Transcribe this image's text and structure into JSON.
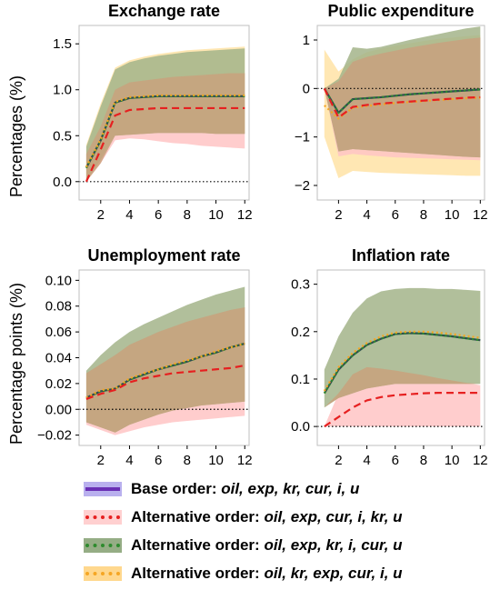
{
  "y_labels": {
    "top": "Percentages (%)",
    "bottom": "Percentage points  (%)"
  },
  "legend": [
    {
      "prefix": "Base order:",
      "vars": "oil, exp, kr, cur, i, u",
      "band": "#b9b0ee",
      "line": "#6a2fb5",
      "dash": "solid"
    },
    {
      "prefix": "Alternative order:",
      "vars": "oil, exp, cur, i, kr, u",
      "band": "#ffd0d0",
      "line": "#e62020",
      "dash": "dotted"
    },
    {
      "prefix": "Alternative order:",
      "vars": "oil, exp, kr, i, cur, u",
      "band": "#95ad85",
      "line": "#2e8b2e",
      "dash": "dotted"
    },
    {
      "prefix": "Alternative order:",
      "vars": "oil, kr, exp, cur, i, u",
      "band": "#ffd88e",
      "line": "#f5a623",
      "dash": "dotted"
    }
  ],
  "chart_data": [
    {
      "type": "line",
      "title": "Exchange rate",
      "x": [
        1,
        2,
        3,
        4,
        5,
        6,
        7,
        8,
        9,
        10,
        11,
        12
      ],
      "xticks": [
        2,
        4,
        6,
        8,
        10,
        12
      ],
      "yticks": [
        0.0,
        0.5,
        1.0,
        1.5
      ],
      "tick_labels": [
        "0.0",
        "0.5",
        "1.0",
        "1.5"
      ],
      "ylim": [
        -0.2,
        1.7
      ],
      "xlim": [
        0.5,
        12.3
      ],
      "zero_line": true,
      "bands": [
        {
          "name": "Alternative order: oil, exp, cur, i, kr, u",
          "color": "#ffc4c4",
          "lower": [
            0,
            0.2,
            0.45,
            0.47,
            0.46,
            0.44,
            0.42,
            0.41,
            0.39,
            0.38,
            0.37,
            0.36
          ],
          "upper": [
            0.3,
            0.6,
            1.0,
            1.08,
            1.1,
            1.12,
            1.14,
            1.15,
            1.16,
            1.17,
            1.18,
            1.18
          ]
        },
        {
          "name": "Alternative order: oil, kr, exp, cur, i, u",
          "color": "#ffe3a6",
          "lower": [
            0,
            0.24,
            0.51,
            0.52,
            0.53,
            0.54,
            0.54,
            0.54,
            0.54,
            0.53,
            0.53,
            0.53
          ],
          "upper": [
            0.4,
            0.85,
            1.24,
            1.32,
            1.36,
            1.39,
            1.41,
            1.43,
            1.44,
            1.45,
            1.46,
            1.47
          ]
        },
        {
          "name": "Alternative order: oil, exp, kr, i, cur, u",
          "color": "#a3b48a",
          "lower": [
            0,
            0.24,
            0.5,
            0.51,
            0.52,
            0.53,
            0.53,
            0.53,
            0.53,
            0.52,
            0.52,
            0.52
          ],
          "upper": [
            0.38,
            0.82,
            1.22,
            1.3,
            1.34,
            1.37,
            1.39,
            1.41,
            1.42,
            1.43,
            1.44,
            1.45
          ]
        },
        {
          "name": "overlap",
          "color": "#c9a27e",
          "lower": [
            0,
            0.2,
            0.5,
            0.51,
            0.52,
            0.53,
            0.53,
            0.53,
            0.53,
            0.52,
            0.52,
            0.52
          ],
          "upper": [
            0.3,
            0.6,
            1.0,
            1.08,
            1.1,
            1.12,
            1.14,
            1.15,
            1.16,
            1.17,
            1.18,
            1.18
          ]
        }
      ],
      "series": [
        {
          "name": "Base order: oil, exp, kr, cur, i, u",
          "color": "#2f4f4f",
          "dash": "solid",
          "values": [
            0.15,
            0.45,
            0.86,
            0.91,
            0.92,
            0.93,
            0.93,
            0.93,
            0.93,
            0.93,
            0.93,
            0.93
          ]
        },
        {
          "name": "Alternative order: oil, exp, kr, i, cur, u",
          "color": "#2e8b2e",
          "dash": "dotted",
          "values": [
            0.15,
            0.45,
            0.86,
            0.91,
            0.92,
            0.93,
            0.93,
            0.93,
            0.93,
            0.93,
            0.93,
            0.93
          ]
        },
        {
          "name": "Alternative order: oil, kr, exp, cur, i, u",
          "color": "#f5a623",
          "dash": "dotted",
          "values": [
            0.16,
            0.46,
            0.87,
            0.92,
            0.93,
            0.94,
            0.94,
            0.94,
            0.94,
            0.94,
            0.94,
            0.94
          ]
        },
        {
          "name": "Alternative order: oil, exp, cur, i, kr, u",
          "color": "#e62020",
          "dash": "dashed",
          "values": [
            0.0,
            0.35,
            0.72,
            0.78,
            0.79,
            0.8,
            0.8,
            0.8,
            0.8,
            0.8,
            0.8,
            0.8
          ]
        }
      ]
    },
    {
      "type": "line",
      "title": "Public expenditure",
      "x": [
        1,
        2,
        3,
        4,
        5,
        6,
        7,
        8,
        9,
        10,
        11,
        12
      ],
      "xticks": [
        2,
        4,
        6,
        8,
        10,
        12
      ],
      "yticks": [
        -2,
        -1,
        0,
        1
      ],
      "tick_labels": [
        "−2",
        "−1",
        "0",
        "1"
      ],
      "ylim": [
        -2.3,
        1.3
      ],
      "xlim": [
        0.5,
        12.3
      ],
      "zero_line": true,
      "bands": [
        {
          "name": "Alternative order: oil, kr, exp, cur, i, u",
          "color": "#ffe3a6",
          "lower": [
            -1.0,
            -1.85,
            -1.7,
            -1.72,
            -1.74,
            -1.75,
            -1.76,
            -1.77,
            -1.78,
            -1.79,
            -1.8,
            -1.8
          ],
          "upper": [
            0.8,
            0.35,
            0.6,
            0.75,
            0.82,
            0.88,
            0.93,
            0.98,
            1.02,
            1.05,
            1.08,
            1.1
          ]
        },
        {
          "name": "Alternative order: oil, exp, cur, i, kr, u",
          "color": "#ffc4c4",
          "lower": [
            0,
            -1.4,
            -1.35,
            -1.38,
            -1.4,
            -1.42,
            -1.43,
            -1.44,
            -1.45,
            -1.46,
            -1.47,
            -1.48
          ],
          "upper": [
            0,
            0.15,
            0.55,
            0.65,
            0.72,
            0.78,
            0.84,
            0.89,
            0.94,
            0.98,
            1.02,
            1.05
          ]
        },
        {
          "name": "Alternative order: oil, exp, kr, i, cur, u",
          "color": "#a3b48a",
          "lower": [
            0,
            -1.3,
            -1.25,
            -1.27,
            -1.29,
            -1.31,
            -1.33,
            -1.35,
            -1.37,
            -1.39,
            -1.41,
            -1.42
          ],
          "upper": [
            0,
            0.2,
            0.85,
            0.82,
            0.86,
            0.93,
            1.0,
            1.06,
            1.12,
            1.18,
            1.24,
            1.28
          ]
        },
        {
          "name": "overlap",
          "color": "#c9a27e",
          "lower": [
            0,
            -1.3,
            -1.25,
            -1.27,
            -1.29,
            -1.31,
            -1.33,
            -1.35,
            -1.37,
            -1.39,
            -1.41,
            -1.42
          ],
          "upper": [
            0,
            0.15,
            0.55,
            0.65,
            0.72,
            0.78,
            0.84,
            0.89,
            0.94,
            0.98,
            1.02,
            1.05
          ]
        }
      ],
      "series": [
        {
          "name": "Base order: oil, exp, kr, cur, i, u",
          "color": "#2f4f4f",
          "dash": "solid",
          "values": [
            0,
            -0.5,
            -0.22,
            -0.2,
            -0.18,
            -0.15,
            -0.12,
            -0.1,
            -0.08,
            -0.06,
            -0.04,
            -0.02
          ]
        },
        {
          "name": "Alternative order: oil, exp, kr, i, cur, u",
          "color": "#2e8b2e",
          "dash": "dotted",
          "values": [
            0,
            -0.5,
            -0.22,
            -0.2,
            -0.18,
            -0.15,
            -0.12,
            -0.1,
            -0.08,
            -0.06,
            -0.04,
            -0.02
          ]
        },
        {
          "name": "Alternative order: oil, kr, exp, cur, i, u",
          "color": "#f5a623",
          "dash": "dotted",
          "values": [
            -0.35,
            -0.62,
            -0.4,
            -0.36,
            -0.33,
            -0.3,
            -0.28,
            -0.26,
            -0.24,
            -0.22,
            -0.2,
            -0.19
          ]
        },
        {
          "name": "Alternative order: oil, exp, cur, i, kr, u",
          "color": "#e62020",
          "dash": "dashed",
          "values": [
            0,
            -0.6,
            -0.38,
            -0.34,
            -0.31,
            -0.29,
            -0.27,
            -0.25,
            -0.23,
            -0.21,
            -0.19,
            -0.18
          ]
        }
      ]
    },
    {
      "type": "line",
      "title": "Unemployment rate",
      "x": [
        1,
        2,
        3,
        4,
        5,
        6,
        7,
        8,
        9,
        10,
        11,
        12
      ],
      "xticks": [
        2,
        4,
        6,
        8,
        10,
        12
      ],
      "yticks": [
        -0.02,
        0.0,
        0.02,
        0.04,
        0.06,
        0.08,
        0.1
      ],
      "tick_labels": [
        "−0.02",
        "0.00",
        "0.02",
        "0.04",
        "0.06",
        "0.08",
        "0.10"
      ],
      "ylim": [
        -0.028,
        0.108
      ],
      "xlim": [
        0.5,
        12.3
      ],
      "zero_line": true,
      "bands": [
        {
          "name": "Alternative order: oil, exp, cur, i, kr, u",
          "color": "#ffc4c4",
          "lower": [
            -0.012,
            -0.016,
            -0.02,
            -0.017,
            -0.014,
            -0.012,
            -0.01,
            -0.009,
            -0.008,
            -0.007,
            -0.006,
            -0.005
          ],
          "upper": [
            0.028,
            0.035,
            0.042,
            0.05,
            0.055,
            0.06,
            0.064,
            0.068,
            0.071,
            0.074,
            0.077,
            0.079
          ]
        },
        {
          "name": "Alternative order: oil, exp, kr, i, cur, u",
          "color": "#a3b48a",
          "lower": [
            -0.01,
            -0.014,
            -0.018,
            -0.012,
            -0.008,
            -0.004,
            -0.001,
            0.001,
            0.003,
            0.004,
            0.005,
            0.006
          ],
          "upper": [
            0.03,
            0.042,
            0.052,
            0.06,
            0.066,
            0.071,
            0.076,
            0.081,
            0.085,
            0.089,
            0.092,
            0.095
          ]
        },
        {
          "name": "overlap",
          "color": "#c9a27e",
          "lower": [
            -0.01,
            -0.014,
            -0.018,
            -0.012,
            -0.008,
            -0.004,
            -0.001,
            0.001,
            0.003,
            0.004,
            0.005,
            0.006
          ],
          "upper": [
            0.028,
            0.035,
            0.042,
            0.05,
            0.055,
            0.06,
            0.064,
            0.068,
            0.071,
            0.074,
            0.077,
            0.079
          ]
        }
      ],
      "series": [
        {
          "name": "Base order: oil, exp, kr, cur, i, u",
          "color": "#2f4f4f",
          "dash": "solid",
          "values": [
            0.009,
            0.014,
            0.016,
            0.023,
            0.027,
            0.031,
            0.034,
            0.037,
            0.041,
            0.044,
            0.048,
            0.051
          ]
        },
        {
          "name": "Alternative order: oil, exp, kr, i, cur, u",
          "color": "#2e8b2e",
          "dash": "dotted",
          "values": [
            0.009,
            0.014,
            0.016,
            0.023,
            0.027,
            0.031,
            0.034,
            0.037,
            0.041,
            0.044,
            0.048,
            0.051
          ]
        },
        {
          "name": "Alternative order: oil, kr, exp, cur, i, u",
          "color": "#f5a623",
          "dash": "dotted",
          "values": [
            0.009,
            0.015,
            0.016,
            0.024,
            0.028,
            0.031,
            0.035,
            0.038,
            0.041,
            0.045,
            0.048,
            0.051
          ]
        },
        {
          "name": "Alternative order: oil, exp, cur, i, kr, u",
          "color": "#e62020",
          "dash": "dashed",
          "values": [
            0.008,
            0.012,
            0.015,
            0.021,
            0.024,
            0.026,
            0.028,
            0.029,
            0.03,
            0.031,
            0.032,
            0.034
          ]
        }
      ]
    },
    {
      "type": "line",
      "title": "Inflation rate",
      "x": [
        1,
        2,
        3,
        4,
        5,
        6,
        7,
        8,
        9,
        10,
        11,
        12
      ],
      "xticks": [
        2,
        4,
        6,
        8,
        10,
        12
      ],
      "yticks": [
        0.0,
        0.1,
        0.2,
        0.3
      ],
      "tick_labels": [
        "0.0",
        "0.1",
        "0.2",
        "0.3"
      ],
      "ylim": [
        -0.04,
        0.33
      ],
      "xlim": [
        0.5,
        12.3
      ],
      "zero_line": true,
      "bands": [
        {
          "name": "Alternative order: oil, exp, cur, i, kr, u",
          "color": "#ffc4c4",
          "lower": [
            0,
            0,
            0,
            0,
            0,
            0,
            0,
            0,
            0,
            0,
            0,
            0
          ],
          "upper": [
            0,
            0.07,
            0.11,
            0.125,
            0.122,
            0.118,
            0.113,
            0.108,
            0.102,
            0.097,
            0.092,
            0.087
          ]
        },
        {
          "name": "Alternative order: oil, exp, kr, i, cur, u",
          "color": "#a3b48a",
          "lower": [
            0.04,
            0.06,
            0.07,
            0.08,
            0.085,
            0.09,
            0.09,
            0.09,
            0.09,
            0.09,
            0.09,
            0.09
          ],
          "upper": [
            0.12,
            0.19,
            0.24,
            0.27,
            0.285,
            0.29,
            0.292,
            0.292,
            0.29,
            0.29,
            0.288,
            0.286
          ]
        },
        {
          "name": "overlap",
          "color": "#c9a27e",
          "lower": [
            0.04,
            0.06,
            0.07,
            0.08,
            0.085,
            0.09,
            0.09,
            0.09,
            0.09,
            0.09,
            0.09,
            0.09
          ],
          "upper": [
            0.04,
            0.07,
            0.11,
            0.125,
            0.122,
            0.118,
            0.113,
            0.108,
            0.102,
            0.097,
            0.092,
            0.09
          ]
        }
      ],
      "series": [
        {
          "name": "Base order: oil, exp, kr, cur, i, u",
          "color": "#2f4f4f",
          "dash": "solid",
          "values": [
            0.07,
            0.12,
            0.15,
            0.172,
            0.185,
            0.195,
            0.197,
            0.196,
            0.193,
            0.19,
            0.186,
            0.182
          ]
        },
        {
          "name": "Alternative order: oil, exp, kr, i, cur, u",
          "color": "#2e8b2e",
          "dash": "dotted",
          "values": [
            0.07,
            0.12,
            0.15,
            0.172,
            0.185,
            0.195,
            0.197,
            0.196,
            0.193,
            0.19,
            0.186,
            0.182
          ]
        },
        {
          "name": "Alternative order: oil, kr, exp, cur, i, u",
          "color": "#f5a623",
          "dash": "dotted",
          "values": [
            0.075,
            0.125,
            0.155,
            0.176,
            0.19,
            0.198,
            0.2,
            0.2,
            0.198,
            0.195,
            0.191,
            0.187
          ]
        },
        {
          "name": "Alternative order: oil, exp, cur, i, kr, u",
          "color": "#e62020",
          "dash": "dashed",
          "values": [
            0,
            0.02,
            0.04,
            0.055,
            0.062,
            0.066,
            0.068,
            0.07,
            0.071,
            0.071,
            0.071,
            0.071
          ]
        }
      ]
    }
  ]
}
